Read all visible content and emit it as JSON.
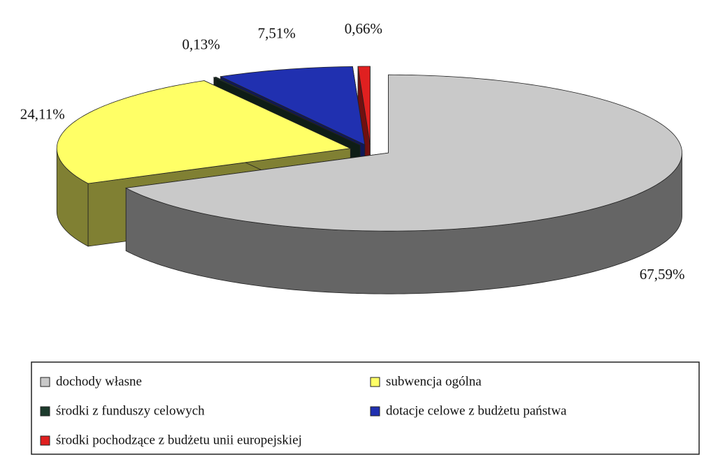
{
  "chart_data": {
    "type": "pie3d",
    "categories": [
      "dochody własne",
      "subwencja ogólna",
      "środki z funduszy celowych",
      "dotacje celowe z budżetu państwa",
      "środki pochodzące z budżetu unii europejskiej"
    ],
    "values": [
      67.59,
      24.11,
      0.13,
      7.51,
      0.66
    ],
    "value_labels": [
      "67,59%",
      "24,11%",
      "0,13%",
      "7,51%",
      "0,66%"
    ],
    "colors": [
      "#c9c9c9",
      "#ffff66",
      "#1c3a2c",
      "#2030b0",
      "#e02020"
    ],
    "legend": "bottom"
  }
}
